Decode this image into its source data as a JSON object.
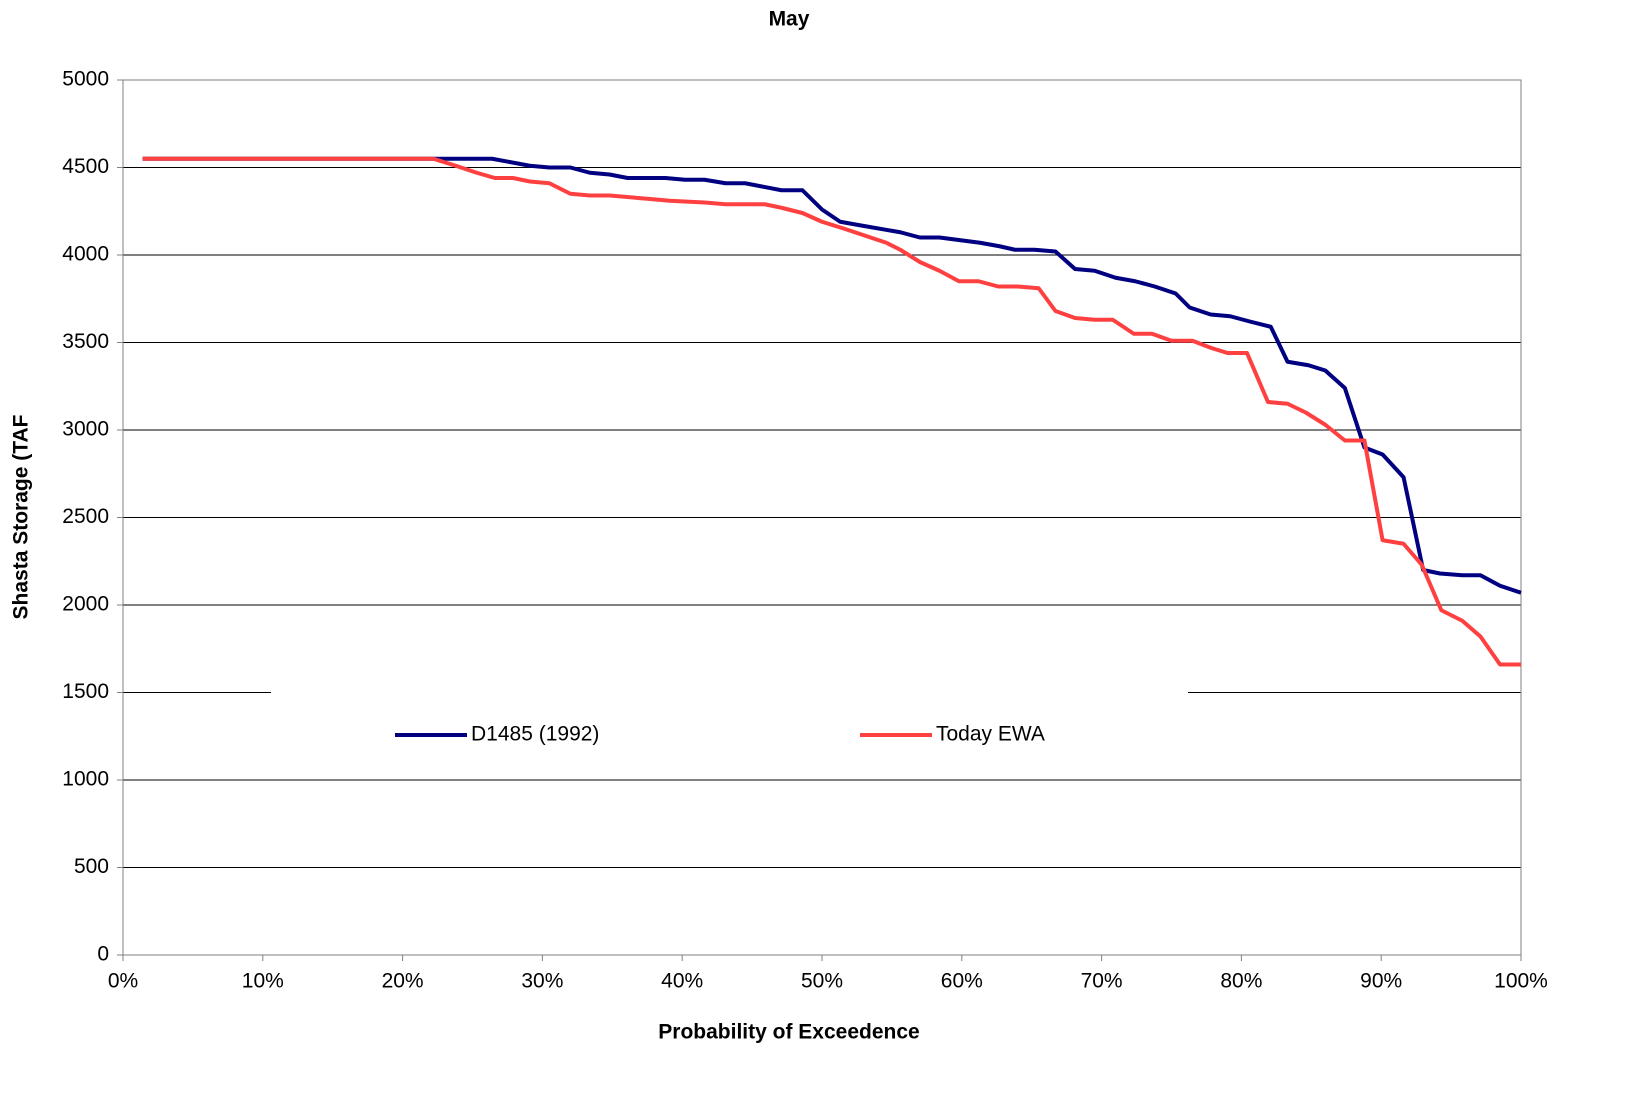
{
  "chart_data": {
    "type": "line",
    "title": "May",
    "x_label": "Probability of Exceedence",
    "y_label": "Shasta Storage (TAF",
    "xlim": [
      0,
      100
    ],
    "xticks": [
      {
        "value": 0,
        "label": "0%"
      },
      {
        "value": 10,
        "label": "10%"
      },
      {
        "value": 20,
        "label": "20%"
      },
      {
        "value": 30,
        "label": "30%"
      },
      {
        "value": 40,
        "label": "40%"
      },
      {
        "value": 50,
        "label": "50%"
      },
      {
        "value": 60,
        "label": "60%"
      },
      {
        "value": 70,
        "label": "70%"
      },
      {
        "value": 80,
        "label": "80%"
      },
      {
        "value": 90,
        "label": "90%"
      },
      {
        "value": 100,
        "label": "100%"
      }
    ],
    "ylim": [
      0,
      5000
    ],
    "yticks": [
      0,
      500,
      1000,
      1500,
      2000,
      2500,
      3000,
      3500,
      4000,
      4500,
      5000
    ],
    "grid": true,
    "legend": "center",
    "series": [
      {
        "name": "D1485 (1992)",
        "color": "#000080",
        "x": [
          1.4,
          26.4,
          29.1,
          30.5,
          32,
          33.4,
          34.8,
          36.1,
          38.8,
          40.2,
          41.6,
          43.1,
          44.5,
          47.1,
          48.6,
          50,
          51.3,
          52.7,
          55.6,
          57,
          58.4,
          61.3,
          62.7,
          63.8,
          65.2,
          66.7,
          68.1,
          69.5,
          71,
          72.4,
          73.8,
          75.3,
          76.3,
          77.8,
          79.2,
          80.6,
          82.1,
          83.3,
          84.8,
          86,
          87.4,
          88.8,
          90.1,
          91.6,
          93,
          94.2,
          95.8,
          97.1,
          98.5,
          100
        ],
        "values": [
          4550,
          4550,
          4510,
          4500,
          4500,
          4470,
          4460,
          4440,
          4440,
          4430,
          4430,
          4410,
          4410,
          4370,
          4370,
          4260,
          4190,
          4170,
          4130,
          4100,
          4100,
          4070,
          4050,
          4030,
          4030,
          4020,
          3920,
          3910,
          3870,
          3850,
          3820,
          3780,
          3700,
          3660,
          3650,
          3620,
          3590,
          3390,
          3370,
          3340,
          3240,
          2900,
          2860,
          2730,
          2200,
          2180,
          2170,
          2170,
          2110,
          2070
        ]
      },
      {
        "name": "Today EWA",
        "color": "#ff4040",
        "x": [
          1.4,
          22.2,
          23.8,
          25.3,
          26.6,
          27.9,
          29.1,
          30.5,
          32,
          33.4,
          34.8,
          37.7,
          39.1,
          41.6,
          43.1,
          45.9,
          47.1,
          48.6,
          50,
          51.6,
          53.1,
          54.6,
          55.6,
          57,
          58.4,
          59.8,
          61.2,
          62.6,
          64,
          65.5,
          66.7,
          68.1,
          69.5,
          70.8,
          72.3,
          73.6,
          75,
          76.5,
          77.8,
          79,
          80.4,
          81.9,
          83.3,
          84.6,
          86,
          87.4,
          88.8,
          90.1,
          91.6,
          92.9,
          94.3,
          95.8,
          97.1,
          98.5,
          100
        ],
        "values": [
          4550,
          4550,
          4510,
          4470,
          4440,
          4440,
          4420,
          4410,
          4350,
          4340,
          4340,
          4320,
          4310,
          4300,
          4290,
          4290,
          4270,
          4240,
          4190,
          4150,
          4110,
          4070,
          4030,
          3960,
          3910,
          3850,
          3850,
          3820,
          3820,
          3810,
          3680,
          3640,
          3630,
          3630,
          3550,
          3550,
          3510,
          3510,
          3470,
          3440,
          3440,
          3160,
          3150,
          3100,
          3030,
          2940,
          2940,
          2370,
          2350,
          2230,
          1970,
          1910,
          1820,
          1660,
          1660
        ]
      }
    ]
  }
}
